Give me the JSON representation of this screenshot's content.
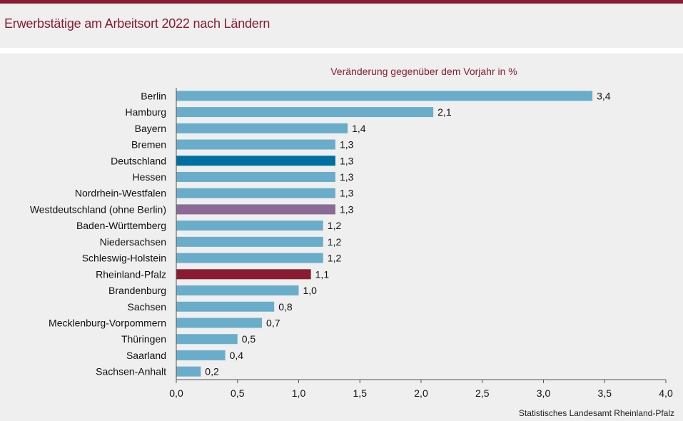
{
  "header": {
    "title": "Erwerbstätige am Arbeitsort 2022 nach Ländern"
  },
  "footer": {
    "source": "Statistisches Landesamt Rheinland-Pfalz"
  },
  "colors": {
    "accent": "#8a1c32",
    "default_bar": "#6aadcb",
    "germany_bar": "#0070a0",
    "west_bar": "#8b6b96",
    "rlp_bar": "#8a1c32",
    "background": "#efefef"
  },
  "chart_data": {
    "type": "bar",
    "orientation": "horizontal",
    "subtitle": "Veränderung  gegenüber  dem Vorjahr  in %",
    "categories": [
      "Berlin",
      "Hamburg",
      "Bayern",
      "Bremen",
      "Deutschland",
      "Hessen",
      "Nordrhein-Westfalen",
      "Westdeutschland (ohne Berlin)",
      "Baden-Württemberg",
      "Niedersachsen",
      "Schleswig-Holstein",
      "Rheinland-Pfalz",
      "Brandenburg",
      "Sachsen",
      "Mecklenburg-Vorpommern",
      "Thüringen",
      "Saarland",
      "Sachsen-Anhalt"
    ],
    "values": [
      3.4,
      2.1,
      1.4,
      1.3,
      1.3,
      1.3,
      1.3,
      1.3,
      1.2,
      1.2,
      1.2,
      1.1,
      1.0,
      0.8,
      0.7,
      0.5,
      0.4,
      0.2
    ],
    "value_labels": [
      "3,4",
      "2,1",
      "1,4",
      "1,3",
      "1,3",
      "1,3",
      "1,3",
      "1,3",
      "1,2",
      "1,2",
      "1,2",
      "1,1",
      "1,0",
      "0,8",
      "0,7",
      "0,5",
      "0,4",
      "0,2"
    ],
    "highlight": {
      "Deutschland": "germany_bar",
      "Westdeutschland (ohne Berlin)": "west_bar",
      "Rheinland-Pfalz": "rlp_bar"
    },
    "xlim": [
      0,
      4.0
    ],
    "xticks": [
      0,
      0.5,
      1.0,
      1.5,
      2.0,
      2.5,
      3.0,
      3.5,
      4.0
    ],
    "xtick_labels": [
      "0,0",
      "0,5",
      "1,0",
      "1,5",
      "2,0",
      "2,5",
      "3,0",
      "3,5",
      "4,0"
    ],
    "xlabel": "",
    "ylabel": "",
    "grid": false
  }
}
